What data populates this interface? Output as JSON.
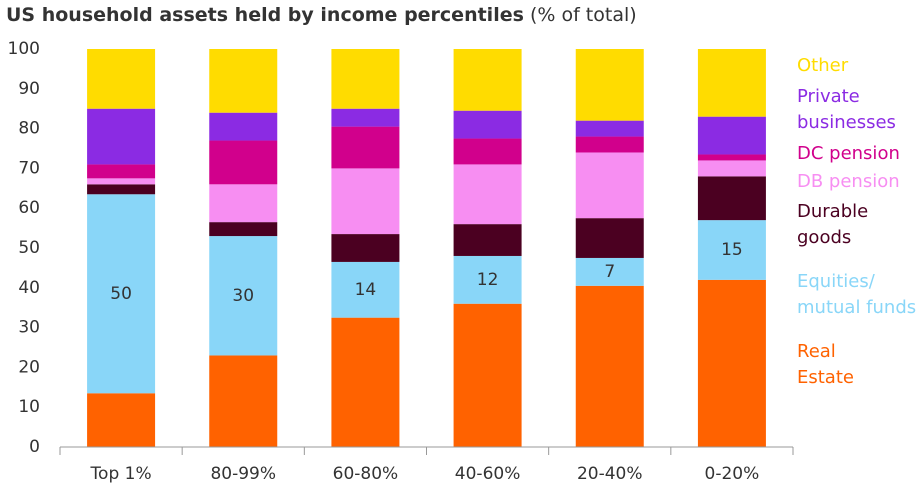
{
  "chart_data": {
    "type": "stacked_bar",
    "title": "US household assets held by income percentiles",
    "subtitle": "(% of total)",
    "categories": [
      "Top 1%",
      "80-99%",
      "60-80%",
      "40-60%",
      "20-40%",
      "0-20%"
    ],
    "series": [
      {
        "name": "Real Estate",
        "color": "#ff6200",
        "values": [
          13.5,
          23,
          32.5,
          36,
          40.5,
          42
        ]
      },
      {
        "name": "Equities/ mutual funds",
        "color": "#89d6f8",
        "values": [
          50,
          30,
          14,
          12,
          7,
          15
        ],
        "show_values": true
      },
      {
        "name": "Durable goods",
        "color": "#4b0021",
        "values": [
          2.5,
          3.5,
          7,
          8,
          10,
          11
        ]
      },
      {
        "name": "DB pension",
        "color": "#f78ef2",
        "values": [
          1.5,
          9.5,
          16.5,
          15,
          16.5,
          4
        ]
      },
      {
        "name": "DC pension",
        "color": "#d1008c",
        "values": [
          3.5,
          11,
          10.5,
          6.5,
          4,
          1.5
        ]
      },
      {
        "name": "Private businesses",
        "color": "#8b2be3",
        "values": [
          14,
          7,
          4.5,
          7,
          4,
          9.5
        ]
      },
      {
        "name": "Other",
        "color": "#ffdc00",
        "values": [
          15,
          16,
          15,
          15.5,
          18,
          17
        ]
      }
    ],
    "ylim": [
      0,
      100
    ],
    "yticks": [
      0,
      10,
      20,
      30,
      40,
      50,
      60,
      70,
      80,
      90,
      100
    ],
    "grid": false
  }
}
